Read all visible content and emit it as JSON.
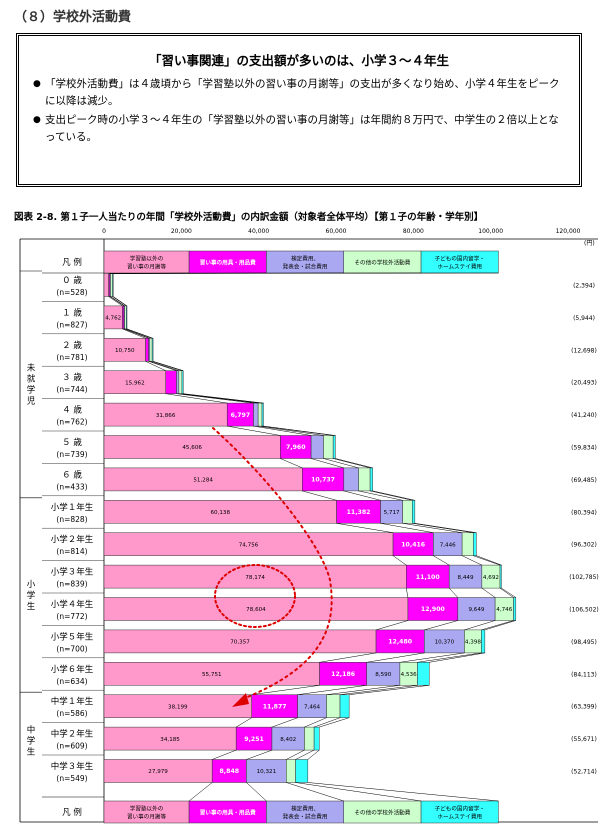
{
  "section_title": "（８）学校外活動費",
  "summary": {
    "heading": "「習い事関連」の支出額が多いのは、小学３～４年生",
    "bullets": [
      "「学校外活動費」は４歳頃から「学習塾以外の習い事の月謝等」の支出が多くなり始め、小学４年生をピークに以降は減少。",
      "支出ピーク時の小学３～４年生の「学習塾以外の習い事の月謝等」は年間約８万円で、中学生の２倍以上となっている。"
    ]
  },
  "figure_title": "図表 2-8.  第１子一人当たりの年間「学校外活動費」の内訳金額（対象者全体平均）【第１子の年齢・学年別】",
  "unit_label": "(円)",
  "legend_label": "凡 例",
  "colors": {
    "s1": "#ff99cc",
    "s2": "#ff00ff",
    "s3": "#aaa8f0",
    "s4": "#ccffcc",
    "s5": "#33ffff",
    "connector": "#000000",
    "arrow": "#dd0000"
  },
  "chart_data": {
    "type": "bar",
    "stacked": true,
    "orientation": "horizontal",
    "xlim": [
      0,
      120000
    ],
    "xticks": [
      "0",
      "20,000",
      "40,000",
      "60,000",
      "80,000",
      "100,000",
      "120,000"
    ],
    "series": [
      {
        "name": "学習塾以外の習い事の月謝等",
        "legend_lines": [
          "学習塾以外の",
          "習い事の月謝等"
        ]
      },
      {
        "name": "習い事の用具・用品費",
        "legend_lines": [
          "習い事の用具・用品費"
        ]
      },
      {
        "name": "検定費用、発表会・試合費用",
        "legend_lines": [
          "検定費用、",
          "発表会・試合費用"
        ]
      },
      {
        "name": "その他の学校外活動費",
        "legend_lines": [
          "その他の学校外活動費"
        ]
      },
      {
        "name": "子どもの国内留学・ホームステイ費用",
        "legend_lines": [
          "子どもの国内留学・",
          "ホームステイ費用"
        ]
      }
    ],
    "groups": [
      {
        "label": "未就学児",
        "from": 0,
        "to": 6
      },
      {
        "label": "小学生",
        "from": 7,
        "to": 12
      },
      {
        "label": "中学生",
        "from": 13,
        "to": 15
      }
    ],
    "rows": [
      {
        "name": "０ 歳",
        "n": "(n=528)",
        "total": "(2,394)",
        "values": [
          1200,
          300,
          200,
          500,
          194
        ],
        "labels": [
          "",
          "",
          "",
          "",
          ""
        ]
      },
      {
        "name": "１ 歳",
        "n": "(n=827)",
        "total": "(5,944)",
        "values": [
          4762,
          400,
          200,
          400,
          182
        ],
        "labels": [
          "4,762",
          "",
          "",
          "",
          ""
        ]
      },
      {
        "name": "２ 歳",
        "n": "(n=781)",
        "total": "(12,698)",
        "values": [
          10750,
          800,
          300,
          600,
          248
        ],
        "labels": [
          "10,750",
          "",
          "",
          "",
          ""
        ]
      },
      {
        "name": "３ 歳",
        "n": "(n=744)",
        "total": "(20,493)",
        "values": [
          15962,
          2800,
          600,
          800,
          331
        ],
        "labels": [
          "15,962",
          "",
          "",
          "",
          ""
        ]
      },
      {
        "name": "４ 歳",
        "n": "(n=762)",
        "total": "(41,240)",
        "values": [
          31866,
          6797,
          1200,
          1000,
          377
        ],
        "labels": [
          "31,866",
          "6,797",
          "",
          "",
          ""
        ]
      },
      {
        "name": "５ 歳",
        "n": "(n=739)",
        "total": "(59,834)",
        "values": [
          45606,
          7960,
          3200,
          2500,
          568
        ],
        "labels": [
          "45,606",
          "7,960",
          "",
          "",
          ""
        ]
      },
      {
        "name": "６ 歳",
        "n": "(n=433)",
        "total": "(69,485)",
        "values": [
          51284,
          10737,
          3800,
          3000,
          664
        ],
        "labels": [
          "51,284",
          "10,737",
          "",
          "",
          ""
        ]
      },
      {
        "name": "小学１年生",
        "n": "(n=828)",
        "total": "(80,394)",
        "values": [
          60138,
          11382,
          5717,
          2500,
          657
        ],
        "labels": [
          "60,138",
          "11,382",
          "5,717",
          "",
          ""
        ]
      },
      {
        "name": "小学２年生",
        "n": "(n=814)",
        "total": "(96,302)",
        "values": [
          74756,
          10416,
          7446,
          2900,
          784
        ],
        "labels": [
          "74,756",
          "10,416",
          "7,446",
          "",
          ""
        ]
      },
      {
        "name": "小学３年生",
        "n": "(n=839)",
        "total": "(102,785)",
        "values": [
          78174,
          11100,
          8449,
          4692,
          370
        ],
        "labels": [
          "78,174",
          "11,100",
          "8,449",
          "4,692",
          ""
        ]
      },
      {
        "name": "小学４年生",
        "n": "(n=772)",
        "total": "(106,502)",
        "values": [
          78604,
          12900,
          9649,
          4746,
          603
        ],
        "labels": [
          "78,604",
          "12,900",
          "9,649",
          "4,746",
          ""
        ]
      },
      {
        "name": "小学５年生",
        "n": "(n=700)",
        "total": "(98,495)",
        "values": [
          70357,
          12480,
          10370,
          4398,
          890
        ],
        "labels": [
          "70,357",
          "12,480",
          "10,370",
          "4,398",
          ""
        ]
      },
      {
        "name": "小学６年生",
        "n": "(n=634)",
        "total": "(84,113)",
        "values": [
          55751,
          12186,
          8590,
          4536,
          3050
        ],
        "labels": [
          "55,751",
          "12,186",
          "8,590",
          "4,536",
          ""
        ]
      },
      {
        "name": "中学１年生",
        "n": "(n=586)",
        "total": "(63,399)",
        "values": [
          38199,
          11877,
          7464,
          3500,
          2359
        ],
        "labels": [
          "38,199",
          "11,877",
          "7,464",
          "",
          ""
        ]
      },
      {
        "name": "中学２年生",
        "n": "(n=609)",
        "total": "(55,671)",
        "values": [
          34185,
          9251,
          8402,
          2500,
          1333
        ],
        "labels": [
          "34,185",
          "9,251",
          "8,402",
          "",
          ""
        ]
      },
      {
        "name": "中学３年生",
        "n": "(n=549)",
        "total": "(52,714)",
        "values": [
          27979,
          8848,
          10321,
          2400,
          3166
        ],
        "labels": [
          "27,979",
          "8,848",
          "10,321",
          "",
          ""
        ]
      }
    ]
  }
}
